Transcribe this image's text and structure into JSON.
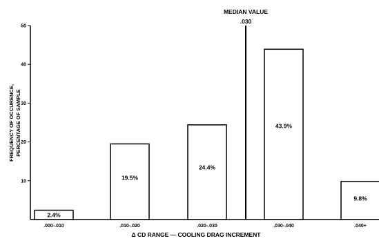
{
  "chart_data": {
    "type": "bar",
    "title": "",
    "xlabel": "Δ CD RANGE — COOLING DRAG INCREMENT",
    "ylabel_lines": [
      "FREQUENCY OF OCCURENCE,",
      "PERCENTAGE OF SAMPLE"
    ],
    "ylim": [
      0,
      50
    ],
    "yticks": [
      10,
      20,
      30,
      40,
      50
    ],
    "grid": false,
    "categories": [
      ".000-.010",
      ".010-.020",
      ".020-.030",
      ".030-.040",
      ".040+"
    ],
    "values": [
      2.4,
      19.5,
      24.4,
      43.9,
      9.8
    ],
    "value_labels": [
      "2.4%",
      "19.5%",
      "24.4%",
      "43.9%",
      "9.8%"
    ],
    "median": {
      "value": 0.03,
      "label": "MEDIAN VALUE",
      "value_label": ".030"
    }
  }
}
